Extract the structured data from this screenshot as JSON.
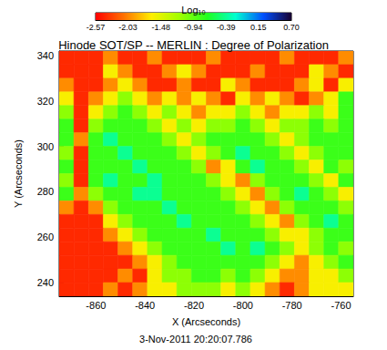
{
  "chart_data": {
    "type": "heatmap",
    "title": "Hinode SOT/SP -- MERLIN : Degree of Polarization",
    "annotation": "3-Nov-2011 20:20:07.786",
    "x_label": "X (Arcseconds)",
    "y_label": "Y (Arcseconds)",
    "xlim": [
      -875,
      -755
    ],
    "xticks": [
      -860,
      -840,
      -820,
      -800,
      -780,
      -760
    ],
    "ylim": [
      234,
      342
    ],
    "yticks": [
      240,
      260,
      280,
      300,
      320,
      340
    ],
    "x": [
      -872,
      -866,
      -860,
      -854,
      -848,
      -842,
      -836,
      -830,
      -824,
      -818,
      -812,
      -806,
      -800,
      -794,
      -788,
      -782,
      -776,
      -770,
      -764,
      -758
    ],
    "y": [
      339,
      333,
      327,
      321,
      315,
      309,
      303,
      297,
      291,
      285,
      279,
      273,
      267,
      261,
      255,
      249,
      243,
      237
    ],
    "cells": [
      [
        -2.4,
        -2.4,
        -2.4,
        -2.0,
        -2.4,
        -2.4,
        -2.0,
        -2.4,
        -2.4,
        -2.4,
        -2.0,
        -2.4,
        -2.4,
        -2.4,
        -2.4,
        -2.0,
        -2.4,
        -2.4,
        -2.4,
        -2.0
      ],
      [
        -2.4,
        -2.4,
        -2.4,
        -1.6,
        -2.0,
        -2.4,
        -2.4,
        -2.0,
        -1.6,
        -2.0,
        -2.4,
        -2.4,
        -2.4,
        -2.0,
        -2.4,
        -2.4,
        -2.4,
        -1.6,
        -2.0,
        -2.4
      ],
      [
        -2.0,
        -2.4,
        -2.4,
        -2.0,
        -1.6,
        -2.0,
        -2.4,
        -2.4,
        -2.0,
        -2.4,
        -2.4,
        -1.6,
        -2.0,
        -2.4,
        -2.4,
        -2.4,
        -2.0,
        -1.6,
        -2.4,
        -1.6
      ],
      [
        -1.6,
        -2.4,
        -2.0,
        -1.6,
        -1.1,
        -1.6,
        -2.0,
        -1.6,
        -2.0,
        -1.6,
        -2.0,
        -2.4,
        -1.6,
        -2.0,
        -1.6,
        -2.0,
        -2.4,
        -2.0,
        -1.6,
        -0.8
      ],
      [
        -1.1,
        -2.4,
        -1.6,
        -1.1,
        -0.8,
        -1.1,
        -1.6,
        -1.1,
        -1.6,
        -2.0,
        -1.6,
        -1.6,
        -1.1,
        -1.6,
        -2.0,
        -1.6,
        -1.6,
        -1.1,
        -1.6,
        -0.8
      ],
      [
        -0.8,
        -2.4,
        -1.1,
        -0.8,
        -0.8,
        -0.8,
        -1.1,
        -1.6,
        -1.1,
        -1.6,
        -1.1,
        -1.1,
        -0.8,
        -1.1,
        -1.6,
        -1.1,
        -1.1,
        -0.8,
        -1.1,
        -0.8
      ],
      [
        -0.8,
        -2.0,
        -0.8,
        -0.4,
        -0.8,
        -0.8,
        -0.8,
        -1.1,
        -1.6,
        -1.1,
        -0.8,
        -0.8,
        -0.8,
        -0.8,
        -1.1,
        -1.6,
        -1.1,
        -0.8,
        -0.8,
        -0.8
      ],
      [
        -1.1,
        -2.4,
        -0.8,
        -0.8,
        -0.4,
        -0.8,
        -0.8,
        -0.8,
        -1.1,
        -1.6,
        -1.1,
        -0.8,
        -0.4,
        -0.8,
        -0.8,
        -1.1,
        -1.6,
        -1.1,
        -0.8,
        -0.8
      ],
      [
        -0.8,
        -2.4,
        -0.8,
        -0.8,
        -0.8,
        -0.4,
        -0.8,
        -0.8,
        -0.8,
        -1.1,
        -2.0,
        -1.6,
        -0.8,
        -0.4,
        -0.8,
        -0.8,
        -1.1,
        -1.6,
        -0.8,
        -1.1
      ],
      [
        -1.1,
        -2.4,
        -0.8,
        -0.4,
        -0.8,
        -0.8,
        -0.4,
        -0.8,
        -0.8,
        -0.8,
        -1.1,
        -1.6,
        -2.0,
        -1.1,
        -0.8,
        -0.8,
        -0.8,
        -1.1,
        -1.6,
        -0.8
      ],
      [
        -0.8,
        -2.0,
        -1.1,
        -0.8,
        -0.8,
        -0.4,
        -0.4,
        -0.8,
        -0.8,
        -0.8,
        -0.8,
        -1.1,
        -1.6,
        -2.0,
        -1.1,
        -0.8,
        -0.4,
        -0.8,
        -1.1,
        -1.6
      ],
      [
        -2.0,
        -2.4,
        -2.0,
        -1.1,
        -0.8,
        -0.8,
        -0.8,
        -0.4,
        -0.8,
        -0.8,
        -0.8,
        -0.8,
        -1.1,
        -1.6,
        -2.0,
        -1.1,
        -0.8,
        -0.8,
        -0.8,
        -1.1
      ],
      [
        -2.4,
        -2.4,
        -2.4,
        -1.6,
        -1.1,
        -0.8,
        -0.8,
        -0.8,
        -0.4,
        -0.8,
        -0.8,
        -0.8,
        -0.8,
        -1.1,
        -1.6,
        -2.0,
        -1.1,
        -0.8,
        -0.4,
        -0.8
      ],
      [
        -2.4,
        -2.4,
        -2.4,
        -2.0,
        -1.6,
        -1.1,
        -0.8,
        -0.8,
        -0.8,
        -0.8,
        -0.4,
        -0.8,
        -0.8,
        -0.8,
        -1.1,
        -1.6,
        -1.6,
        -1.1,
        -0.8,
        -0.8
      ],
      [
        -2.4,
        -2.4,
        -2.4,
        -2.4,
        -2.0,
        -1.6,
        -1.1,
        -0.8,
        -0.8,
        -0.8,
        -0.8,
        -0.4,
        -0.8,
        -0.4,
        -0.8,
        -1.1,
        -1.6,
        -1.1,
        -0.8,
        -1.1
      ],
      [
        -2.4,
        -2.4,
        -2.4,
        -2.4,
        -2.4,
        -2.0,
        -1.6,
        -1.1,
        -0.8,
        -0.8,
        -0.8,
        -0.8,
        -0.8,
        -0.8,
        -1.1,
        -1.6,
        -2.0,
        -1.6,
        -1.1,
        -0.8
      ],
      [
        -2.4,
        -2.4,
        -2.4,
        -2.4,
        -2.0,
        -2.4,
        -1.6,
        -1.1,
        -1.1,
        -0.8,
        -0.8,
        -1.1,
        -0.8,
        -1.1,
        -1.6,
        -2.0,
        -2.0,
        -1.6,
        -1.6,
        -1.1
      ],
      [
        -2.4,
        -2.4,
        -2.4,
        -2.0,
        -2.4,
        -2.0,
        -1.6,
        -1.6,
        -1.1,
        -1.1,
        -1.1,
        -1.6,
        -1.1,
        -1.6,
        -2.0,
        -2.4,
        -2.0,
        -1.6,
        -1.6,
        -1.6
      ]
    ],
    "colorbar": {
      "label": "Log₁₀",
      "range": [
        -2.57,
        0.7
      ],
      "ticks": [
        -2.57,
        -2.03,
        -1.48,
        -0.94,
        -0.39,
        0.15,
        {
          "value": 0.7,
          "label": "0.70"
        }
      ]
    }
  }
}
